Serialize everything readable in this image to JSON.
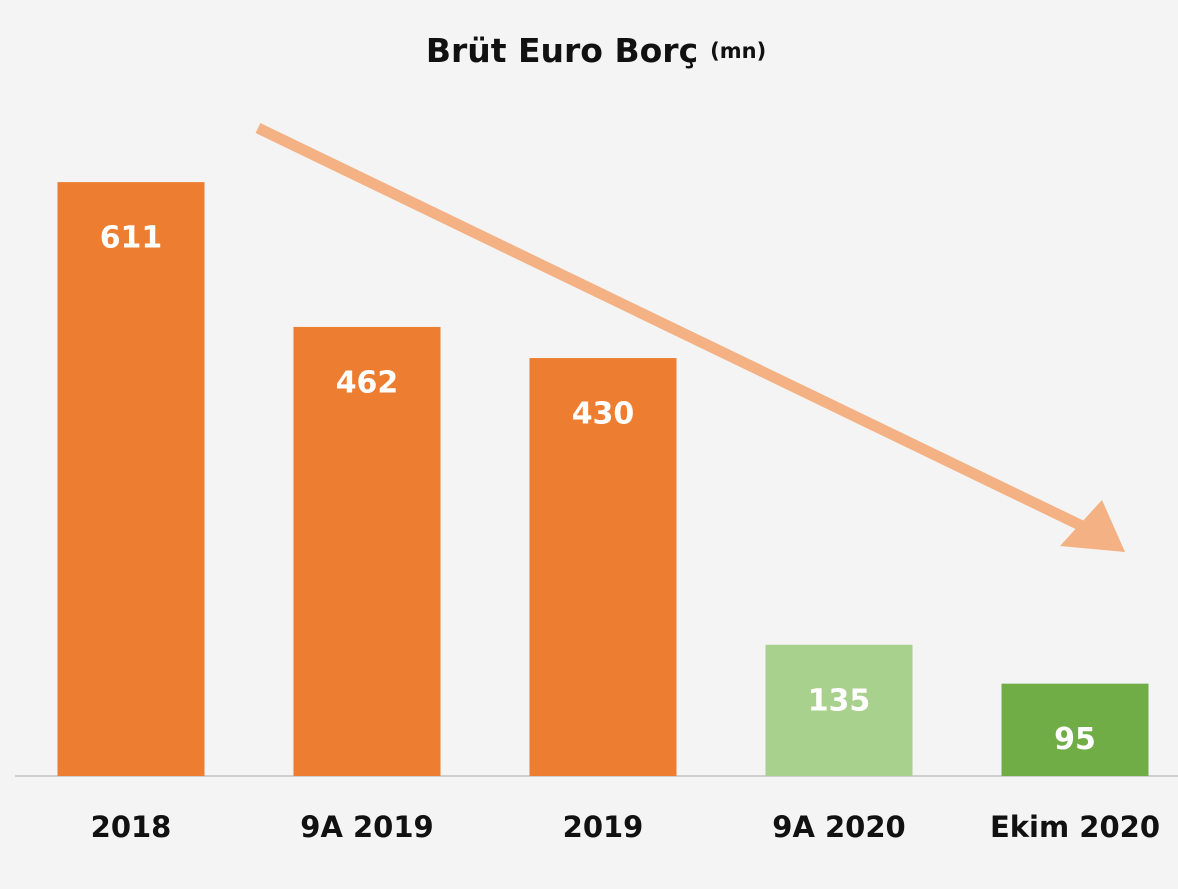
{
  "chart_data": {
    "type": "bar",
    "title": "Brüt Euro Borç",
    "subtitle": "(mn)",
    "categories": [
      "2018",
      "9A 2019",
      "2019",
      "9A 2020",
      "Ekim 2020"
    ],
    "values": [
      611,
      462,
      430,
      135,
      95
    ],
    "colors": [
      "#ed7d31",
      "#ed7d31",
      "#ed7d31",
      "#a9d18e",
      "#70ad47"
    ]
  }
}
